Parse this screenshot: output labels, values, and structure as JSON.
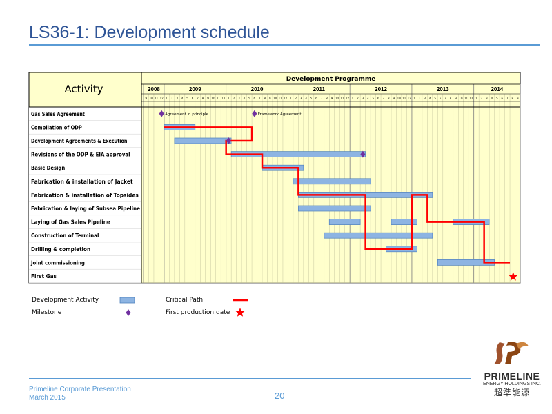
{
  "title": "LS36-1: Development schedule",
  "header": {
    "activity": "Activity",
    "programme": "Development Programme"
  },
  "years": [
    "2008",
    "2009",
    "2010",
    "2011",
    "2012",
    "2013",
    "2014"
  ],
  "months": [
    "9",
    "10",
    "11",
    "12",
    "1",
    "2",
    "3",
    "4",
    "5",
    "6",
    "7",
    "8",
    "9",
    "10",
    "11",
    "12",
    "1",
    "2",
    "3",
    "4",
    "5",
    "6",
    "7",
    "8",
    "9",
    "10",
    "11",
    "12",
    "1",
    "2",
    "3",
    "4",
    "5",
    "6",
    "7",
    "8",
    "9",
    "10",
    "11",
    "12",
    "1",
    "2",
    "3",
    "4",
    "5",
    "6",
    "7",
    "8",
    "9",
    "10",
    "11",
    "12",
    "1",
    "2",
    "3",
    "4",
    "5",
    "6",
    "7",
    "8",
    "9",
    "10",
    "11",
    "12",
    "1",
    "2",
    "3",
    "4",
    "5",
    "6",
    "7",
    "8",
    "9"
  ],
  "activities": [
    "Gas Sales Agreement",
    "Compilation of ODP",
    "Development Agreements & Execution",
    "Revisions of the ODP & EIA approval",
    "Basic Design",
    "Fabrication & installation of Jacket",
    "Fabrication & installation of Topsides",
    "Fabrication & laying of Subsea Pipeline",
    "Laying of Gas Sales Pipeline",
    "Construction of Terminal",
    "Drilling & completion",
    "Joint commissioning",
    "First Gas"
  ],
  "bars": [
    {
      "row": 1,
      "start": "2009-01",
      "end": "2009-06"
    },
    {
      "row": 2,
      "start": "2009-03",
      "end": "2010-01"
    },
    {
      "row": 3,
      "start": "2010-02",
      "end": "2012-03"
    },
    {
      "row": 4,
      "start": "2010-08",
      "end": "2011-03"
    },
    {
      "row": 5,
      "start": "2011-02",
      "end": "2012-04"
    },
    {
      "row": 6,
      "start": "2011-03",
      "end": "2013-04"
    },
    {
      "row": 7,
      "start": "2011-03",
      "end": "2012-04"
    },
    {
      "row": 8,
      "start": "2011-09",
      "end": "2012-02"
    },
    {
      "row": 8,
      "start": "2012-09",
      "end": "2013-01"
    },
    {
      "row": 8,
      "start": "2013-09",
      "end": "2014-03"
    },
    {
      "row": 9,
      "start": "2011-08",
      "end": "2013-04"
    },
    {
      "row": 10,
      "start": "2012-08",
      "end": "2013-01"
    },
    {
      "row": 11,
      "start": "2013-06",
      "end": "2014-04"
    }
  ],
  "milestones": [
    {
      "row": 0,
      "date": "2008-12",
      "label": "Agreement in principle"
    },
    {
      "row": 0,
      "date": "2010-06",
      "label": "Framework Agreement"
    },
    {
      "row": 2,
      "date": "2010-01",
      "label": ""
    },
    {
      "row": 3,
      "date": "2012-03",
      "label": ""
    }
  ],
  "first_gas": {
    "row": 12,
    "date": "2014-08"
  },
  "critical_path": [
    {
      "date": "2009-01",
      "row": 1
    },
    {
      "date": "2010-06",
      "row": 1
    },
    {
      "date": "2010-06",
      "row": 2
    },
    {
      "date": "2010-01",
      "row": 2
    },
    {
      "date": "2010-01",
      "row": 3
    },
    {
      "date": "2010-08",
      "row": 3
    },
    {
      "date": "2010-08",
      "row": 4
    },
    {
      "date": "2011-03",
      "row": 4
    },
    {
      "date": "2011-03",
      "row": 6
    },
    {
      "date": "2012-04",
      "row": 6
    },
    {
      "date": "2012-04",
      "row": 10
    },
    {
      "date": "2013-01",
      "row": 10
    },
    {
      "date": "2013-01",
      "row": 6
    },
    {
      "date": "2013-04",
      "row": 6
    },
    {
      "date": "2013-04",
      "row": 8
    },
    {
      "date": "2014-03",
      "row": 8
    },
    {
      "date": "2014-03",
      "row": 11
    },
    {
      "date": "2014-08",
      "row": 11
    }
  ],
  "colors": {
    "bar": "#8db4e2",
    "bar_border": "#4f81bd",
    "critical": "#ff0000",
    "milestone": "#7030a0",
    "star": "#ff0000",
    "header_fill": "#ffffcc",
    "grid": "#808080"
  },
  "legend": {
    "development_activity": "Development Activity",
    "milestone": "Milestone",
    "critical_path": "Critical Path",
    "first_production": "First production date"
  },
  "footer": {
    "line1": "Primeline Corporate Presentation",
    "line2": "March 2015",
    "page": "20"
  },
  "logo": {
    "name": "PRIMELINE",
    "sub": "ENERGY HOLDINGS INC.",
    "cn": "超準能源"
  }
}
